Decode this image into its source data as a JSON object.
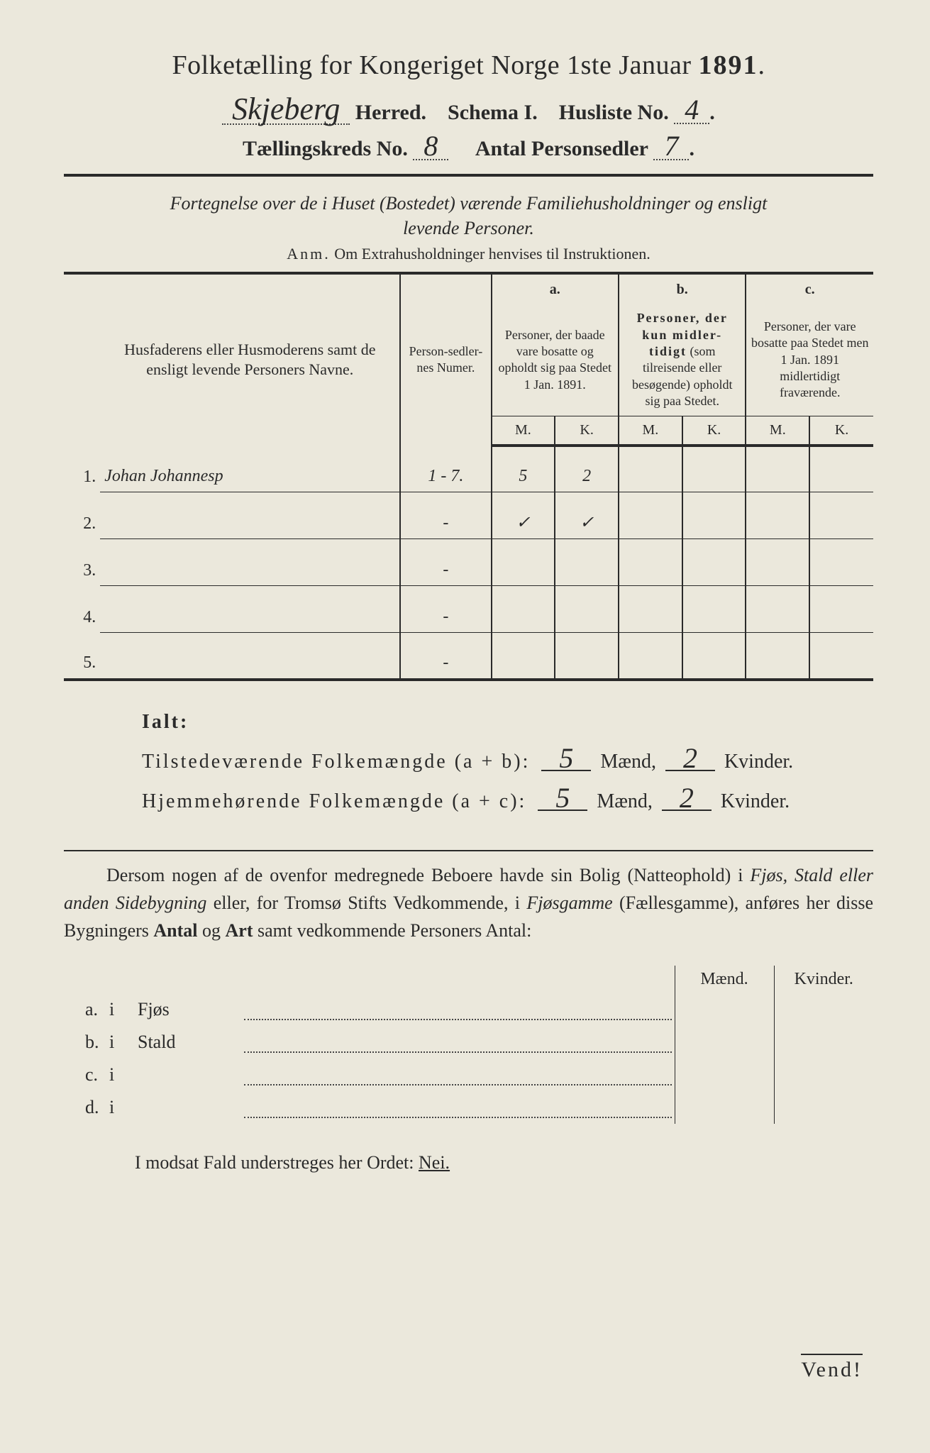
{
  "header": {
    "title_prefix": "Folketælling for Kongeriget Norge 1ste Januar ",
    "year": "1891",
    "herred_value": "Skjeberg",
    "herred_label": " Herred.",
    "schema_label": "Schema I.",
    "husliste_label": "Husliste No.",
    "husliste_value": "4",
    "kreds_label": "Tællingskreds No. ",
    "kreds_value": "8",
    "personsedler_label": "Antal Personsedler",
    "personsedler_value": "7"
  },
  "fortegnelse": {
    "line1": "Fortegnelse over de i Huset (Bostedet) værende Familiehusholdninger og ensligt",
    "line2": "levende Personer.",
    "anm_label": "Anm.",
    "anm_text": " Om Extrahusholdninger henvises til Instruktionen."
  },
  "table": {
    "col_name": "Husfaderens eller Husmoderens samt de ensligt levende Personers Navne.",
    "col_num": "Person-sedler-nes Numer.",
    "col_a_label": "a.",
    "col_a": "Personer, der baade vare bosatte og opholdt sig paa Stedet 1 Jan. 1891.",
    "col_b_label": "b.",
    "col_b": "Personer, der kun midlertidigt (som tilreisende eller besøgende) opholdt sig paa Stedet.",
    "col_c_label": "c.",
    "col_c": "Personer, der vare bosatte paa Stedet men 1 Jan. 1891 midlertidigt fraværende.",
    "m": "M.",
    "k": "K.",
    "rows": [
      {
        "n": "1.",
        "name": "Johan Johannesp",
        "num": "1 - 7.",
        "am": "5",
        "ak": "2",
        "bm": "",
        "bk": "",
        "cm": "",
        "ck": ""
      },
      {
        "n": "2.",
        "name": "",
        "num": "‑",
        "am": "✓",
        "ak": "✓",
        "bm": "",
        "bk": "",
        "cm": "",
        "ck": ""
      },
      {
        "n": "3.",
        "name": "",
        "num": "‑",
        "am": "",
        "ak": "",
        "bm": "",
        "bk": "",
        "cm": "",
        "ck": ""
      },
      {
        "n": "4.",
        "name": "",
        "num": "‑",
        "am": "",
        "ak": "",
        "bm": "",
        "bk": "",
        "cm": "",
        "ck": ""
      },
      {
        "n": "5.",
        "name": "",
        "num": "‑",
        "am": "",
        "ak": "",
        "bm": "",
        "bk": "",
        "cm": "",
        "ck": ""
      }
    ]
  },
  "ialt": {
    "heading": "Ialt:",
    "line1_label": "Tilstedeværende Folkemængde (a + b): ",
    "line2_label": "Hjemmehørende Folkemængde (a + c): ",
    "maend": " Mænd, ",
    "kvinder": " Kvinder.",
    "l1_m": "5",
    "l1_k": "2",
    "l2_m": "5",
    "l2_k": "2"
  },
  "dersom": {
    "text1": "Dersom nogen af de ovenfor medregnede Beboere havde sin Bolig (Natteophold) i ",
    "i1": "Fjøs, Stald eller anden Sidebygning",
    "text2": " eller, for Tromsø Stifts Vedkommende, i ",
    "i2": "Fjøsgamme",
    "text3": " (Fællesgamme), anføres her disse Bygningers ",
    "b1": "Antal",
    "text4": " og ",
    "b2": "Art",
    "text5": " samt vedkommende Personers Antal:"
  },
  "bolig": {
    "maend": "Mænd.",
    "kvinder": "Kvinder.",
    "rows": [
      {
        "l": "a.",
        "i": "i",
        "kind": "Fjøs"
      },
      {
        "l": "b.",
        "i": "i",
        "kind": "Stald"
      },
      {
        "l": "c.",
        "i": "i",
        "kind": ""
      },
      {
        "l": "d.",
        "i": "i",
        "kind": ""
      }
    ]
  },
  "nei": {
    "text": "I modsat Fald understreges her Ordet: ",
    "word": "Nei."
  },
  "vend": "Vend!",
  "colors": {
    "paper": "#ebe8dc",
    "ink": "#2a2a2a",
    "scan_bg": "#1a1210"
  }
}
